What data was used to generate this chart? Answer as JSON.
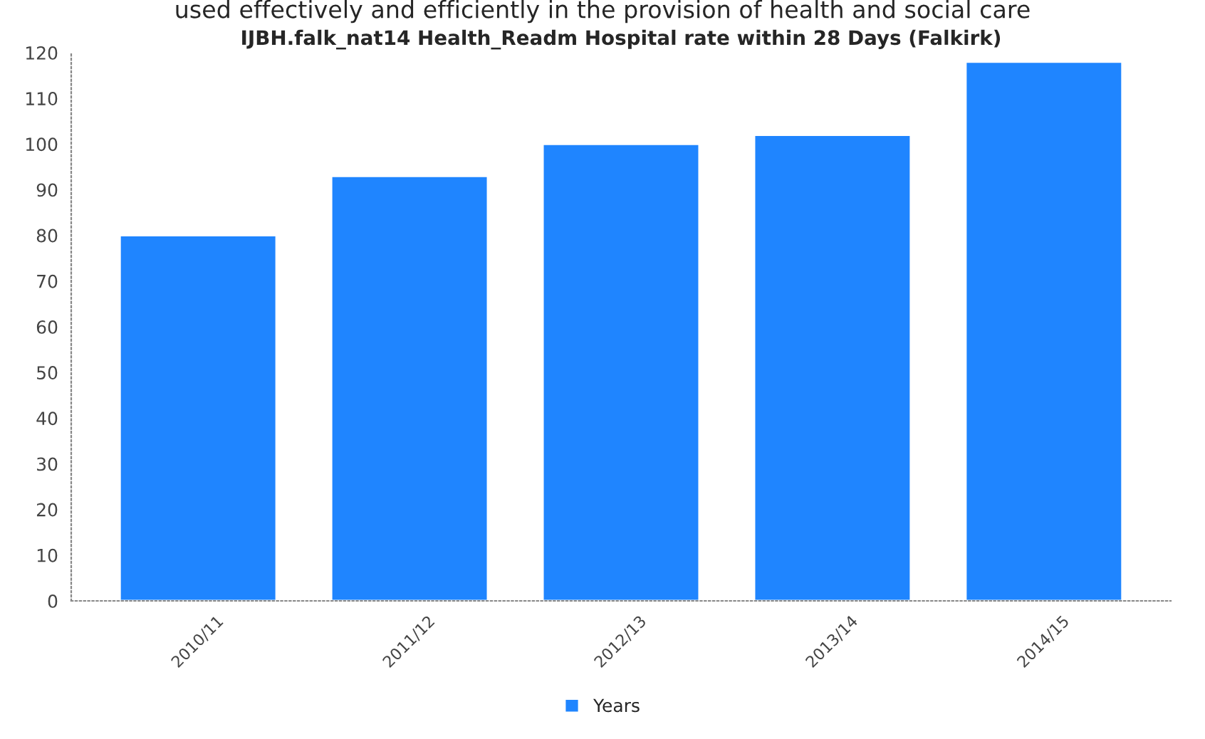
{
  "chart_data": {
    "type": "bar",
    "title": "IJBH.falk_nat14 Health_Readm Hospital rate within 28 Days (Falkirk)",
    "annotations": [
      "used effectively and efficiently in the provision of health and social care"
    ],
    "categories": [
      "2010/11",
      "2011/12",
      "2012/13",
      "2013/14",
      "2014/15"
    ],
    "series": [
      {
        "name": "Years",
        "color": "#1f85ff",
        "values": [
          80,
          93,
          100,
          102,
          118
        ]
      }
    ],
    "ylim": [
      0,
      120
    ],
    "yticks": [
      0,
      10,
      20,
      30,
      40,
      50,
      60,
      70,
      80,
      90,
      100,
      110,
      120
    ],
    "grid": false,
    "legend": "bottom"
  }
}
